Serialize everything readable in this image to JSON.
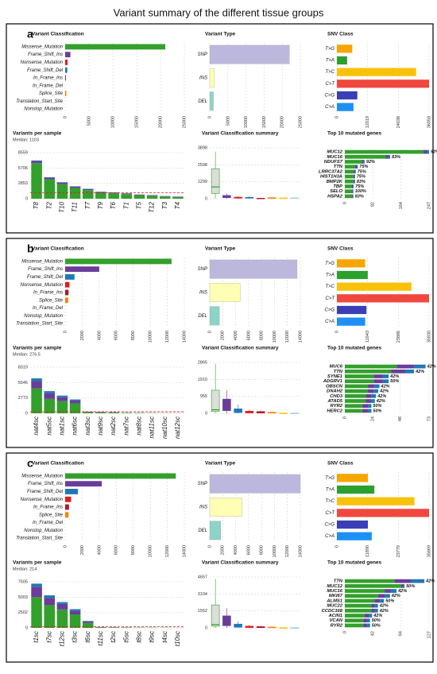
{
  "title": "Variant summary of the different tissue groups",
  "panel_labels": [
    "a",
    "b",
    "c"
  ],
  "chart_data": [
    {
      "type": "hbar",
      "title": "Variant Classification",
      "categories": [
        "Missense_Mutation",
        "Frame_Shift_Ins",
        "Nonsense_Mutation",
        "Frame_Shift_Del",
        "In_Frame_Ins",
        "In_Frame_Del",
        "Splice_Site",
        "Translation_Start_Site",
        "Nonstop_Mutation"
      ],
      "values": [
        21000,
        1100,
        500,
        450,
        150,
        0,
        250,
        0,
        0
      ],
      "colors": [
        "#33a02c",
        "#6a3d9a",
        "#e31a1c",
        "#1f78b4",
        "#b2182b",
        "#fb9a99",
        "#ff7f00",
        "#a6cee3",
        "#cab2d6"
      ],
      "xlim": [
        0,
        25000
      ],
      "xticks": [
        0,
        5000,
        10000,
        15000,
        20000,
        25000
      ],
      "grid": true
    },
    {
      "type": "hbar",
      "title": "Variant Type",
      "categories": [
        "SNP",
        "INS",
        "DEL"
      ],
      "values": [
        22000,
        1300,
        1000
      ],
      "colors": [
        "#bcb8dd",
        "#ffffb3",
        "#8dd3c7"
      ],
      "xlim": [
        0,
        25000
      ],
      "xticks": [
        0,
        5000,
        10000,
        15000,
        20000,
        25000
      ],
      "grid": true
    },
    {
      "type": "hbar",
      "title": "SNV Class",
      "categories": [
        "T>G",
        "T>A",
        "T>C",
        "C>T",
        "C>G",
        "C>A"
      ],
      "values": [
        6000,
        4000,
        31000,
        36058,
        8000,
        6500
      ],
      "colors": [
        "#f7a600",
        "#2ca02c",
        "#f9c20a",
        "#f0483e",
        "#3a3fb5",
        "#1e90f5"
      ],
      "xlim": [
        0,
        36058
      ],
      "xticks": [
        0,
        12019,
        24038,
        36058
      ],
      "grid": true
    },
    {
      "type": "stacked_bar",
      "title": "Variants per sample",
      "subtitle": "Median: 1103",
      "median": 1103,
      "categories": [
        "T8",
        "T2",
        "T10",
        "T11",
        "T7",
        "T9",
        "T6",
        "T1",
        "T5",
        "T12",
        "T3",
        "T4"
      ],
      "series": [
        {
          "name": "Missense_Mutation",
          "color": "#33a02c",
          "values": [
            6600,
            3600,
            2700,
            2000,
            1600,
            1100,
            1000,
            850,
            650,
            550,
            400,
            300
          ]
        },
        {
          "name": "Frame_Shift_Ins",
          "color": "#6a3d9a",
          "values": [
            400,
            300,
            300,
            250,
            200,
            150,
            150,
            120,
            100,
            100,
            80,
            70
          ]
        },
        {
          "name": "Frame_Shift_Del",
          "color": "#1f78b4",
          "values": [
            100,
            80,
            70,
            60,
            50,
            40,
            40,
            30,
            30,
            30,
            20,
            20
          ]
        }
      ],
      "ylim": [
        0,
        8559
      ],
      "yticks": [
        0,
        2853,
        5706,
        8559
      ],
      "grid": true
    },
    {
      "type": "box",
      "title": "Variant Classification summary",
      "box_colors": [
        "#33a02c",
        "#6a3d9a",
        "#e31a1c",
        "#1f78b4",
        "#b2182b",
        "#ff7f00",
        "#f9c20a",
        "#a6cee3"
      ],
      "boxes": [
        [
          20,
          400,
          900,
          2300,
          3600
        ],
        [
          0,
          80,
          120,
          250,
          400
        ],
        [
          0,
          40,
          70,
          120,
          200
        ],
        [
          0,
          40,
          70,
          110,
          180
        ],
        [
          0,
          10,
          20,
          40,
          70
        ],
        [
          0,
          20,
          40,
          80,
          120
        ],
        [
          0,
          10,
          30,
          60,
          90
        ],
        [
          0,
          20,
          40,
          70,
          110
        ]
      ],
      "ylim": [
        0,
        3898
      ],
      "yticks": [
        0,
        1299,
        2598,
        3898
      ],
      "grid": true
    },
    {
      "type": "stacked_hbar",
      "title": "Top 10 mutated genes",
      "categories": [
        "MUC12",
        "MUC16",
        "NDUFS7",
        "TTN",
        "LRRC37A2",
        "HIST1H3A",
        "BMP2K",
        "TBP",
        "SELO",
        "HSPA2"
      ],
      "percent_labels": [
        "92%",
        "83%",
        "92%",
        "75%",
        "75%",
        "75%",
        "83%",
        "75%",
        "100%",
        "83%"
      ],
      "series": [
        {
          "name": "Missense_Mutation",
          "color": "#33a02c",
          "values": [
            230,
            120,
            50,
            30,
            25,
            25,
            25,
            20,
            20,
            20
          ]
        },
        {
          "name": "Frame_Shift_Ins",
          "color": "#6a3d9a",
          "values": [
            10,
            8,
            5,
            5,
            5,
            3,
            3,
            4,
            3,
            3
          ]
        },
        {
          "name": "Frame_Shift_Del",
          "color": "#1f78b4",
          "values": [
            7,
            5,
            3,
            3,
            2,
            2,
            2,
            2,
            2,
            2
          ]
        }
      ],
      "xlim": [
        0,
        247
      ],
      "xticks": [
        0,
        82,
        164,
        247
      ],
      "grid": true
    },
    {
      "type": "hbar",
      "title": "Variant Classification",
      "categories": [
        "Missense_Mutation",
        "Frame_Shift_Ins",
        "Frame_Shift_Del",
        "Nonsense_Mutation",
        "In_Frame_Ins",
        "Splice_Site",
        "In_Frame_Del",
        "Nonstop_Mutation",
        "Translation_Start_Site"
      ],
      "values": [
        12500,
        4000,
        1100,
        500,
        400,
        350,
        0,
        0,
        0
      ],
      "colors": [
        "#33a02c",
        "#6a3d9a",
        "#1f78b4",
        "#e31a1c",
        "#b2182b",
        "#ff7f00",
        "#fb9a99",
        "#cab2d6",
        "#a6cee3"
      ],
      "xlim": [
        0,
        14000
      ],
      "xticks": [
        0,
        2000,
        4000,
        6000,
        8000,
        10000,
        12000,
        14000
      ],
      "grid": true
    },
    {
      "type": "hbar",
      "title": "Variant Type",
      "categories": [
        "SNP",
        "INS",
        "DEL"
      ],
      "values": [
        13500,
        4700,
        1500
      ],
      "colors": [
        "#bcb8dd",
        "#ffffb3",
        "#8dd3c7"
      ],
      "xlim": [
        0,
        14000
      ],
      "xticks": [
        0,
        2000,
        4000,
        6000,
        8000,
        10000,
        12000,
        14000
      ],
      "grid": true
    },
    {
      "type": "hbar",
      "title": "SNV Class",
      "categories": [
        "T>G",
        "T>A",
        "T>C",
        "C>T",
        "C>G",
        "C>A"
      ],
      "values": [
        11000,
        12000,
        29000,
        35830,
        11500,
        11000
      ],
      "colors": [
        "#f7a600",
        "#2ca02c",
        "#f9c20a",
        "#f0483e",
        "#3a3fb5",
        "#1e90f5"
      ],
      "xlim": [
        0,
        35830
      ],
      "xticks": [
        0,
        11943,
        23886,
        35830
      ],
      "grid": true
    },
    {
      "type": "stacked_bar",
      "title": "Variants per sample",
      "subtitle": "Median: 276.5",
      "median": 276.5,
      "categories": [
        "nat4sc",
        "nat5sc",
        "nat1sc",
        "nat6sc",
        "nat3sc",
        "nat9sc",
        "nat2sc",
        "nat7sc",
        "nat8sc",
        "nat11sc",
        "nat10sc",
        "nat12sc"
      ],
      "series": [
        {
          "name": "Missense_Mutation",
          "color": "#33a02c",
          "values": [
            4500,
            2600,
            2200,
            1800,
            200,
            180,
            150,
            70,
            60,
            40,
            20,
            15
          ]
        },
        {
          "name": "Frame_Shift_Ins",
          "color": "#6a3d9a",
          "values": [
            1300,
            1000,
            700,
            500,
            80,
            60,
            40,
            20,
            15,
            8,
            6,
            4
          ]
        },
        {
          "name": "Frame_Shift_Del",
          "color": "#1f78b4",
          "values": [
            500,
            400,
            300,
            200,
            20,
            10,
            10,
            10,
            5,
            2,
            4,
            1
          ]
        }
      ],
      "ylim": [
        0,
        8319
      ],
      "yticks": [
        0,
        2773,
        5546,
        8319
      ],
      "grid": true
    },
    {
      "type": "box",
      "title": "Variant Classification summary",
      "box_colors": [
        "#33a02c",
        "#6a3d9a",
        "#1f78b4",
        "#e31a1c",
        "#b2182b",
        "#ff7f00",
        "#f9c20a",
        "#a6cee3"
      ],
      "boxes": [
        [
          0,
          100,
          200,
          1300,
          2800
        ],
        [
          0,
          150,
          300,
          800,
          1300
        ],
        [
          0,
          40,
          120,
          250,
          500
        ],
        [
          0,
          20,
          60,
          120,
          200
        ],
        [
          0,
          15,
          50,
          100,
          150
        ],
        [
          0,
          10,
          30,
          60,
          90
        ],
        [
          0,
          0,
          5,
          10,
          20
        ],
        [
          0,
          0,
          2,
          5,
          10
        ]
      ],
      "ylim": [
        0,
        2865
      ],
      "yticks": [
        0,
        955,
        1910,
        2865
      ],
      "grid": true
    },
    {
      "type": "stacked_hbar",
      "title": "Top 10 mutated genes",
      "categories": [
        "MUC6",
        "TTN",
        "SYNE1",
        "ADGRV1",
        "OBSCN",
        "DNAH2",
        "CHD3",
        "ATAD5",
        "RYR2",
        "HERC2"
      ],
      "percent_labels": [
        "42%",
        "42%",
        "42%",
        "50%",
        "42%",
        "42%",
        "42%",
        "42%",
        "50%",
        "50%"
      ],
      "series": [
        {
          "name": "Missense_Mutation",
          "color": "#33a02c",
          "values": [
            45,
            40,
            25,
            25,
            20,
            20,
            18,
            18,
            15,
            15
          ]
        },
        {
          "name": "Frame_Shift_Ins",
          "color": "#6a3d9a",
          "values": [
            15,
            12,
            8,
            8,
            6,
            5,
            5,
            5,
            5,
            5
          ]
        },
        {
          "name": "Frame_Shift_Del",
          "color": "#1f78b4",
          "values": [
            10,
            8,
            5,
            5,
            4,
            4,
            4,
            3,
            3,
            3
          ]
        }
      ],
      "xlim": [
        0,
        73
      ],
      "xticks": [
        0,
        24,
        48,
        73
      ],
      "grid": true
    },
    {
      "type": "hbar",
      "title": "Variant Classification",
      "categories": [
        "Missense_Mutation",
        "Frame_Shift_Ins",
        "Frame_Shift_Del",
        "Nonsense_Mutation",
        "In_Frame_Ins",
        "Splice_Site",
        "In_Frame_Del",
        "Nonstop_Mutation",
        "Translation_Start_Site"
      ],
      "values": [
        13000,
        4300,
        1500,
        700,
        450,
        400,
        0,
        0,
        0
      ],
      "colors": [
        "#33a02c",
        "#6a3d9a",
        "#1f78b4",
        "#e31a1c",
        "#b2182b",
        "#ff7f00",
        "#fb9a99",
        "#cab2d6",
        "#a6cee3"
      ],
      "xlim": [
        0,
        14000
      ],
      "xticks": [
        0,
        2000,
        4000,
        6000,
        8000,
        10000,
        12000,
        14000
      ],
      "grid": true
    },
    {
      "type": "hbar",
      "title": "Variant Type",
      "categories": [
        "SNP",
        "INS",
        "DEL"
      ],
      "values": [
        14000,
        5000,
        1700
      ],
      "colors": [
        "#bcb8dd",
        "#ffffb3",
        "#8dd3c7"
      ],
      "xlim": [
        0,
        14000
      ],
      "xticks": [
        0,
        2000,
        4000,
        6000,
        8000,
        10000,
        12000,
        14000
      ],
      "grid": true
    },
    {
      "type": "hbar",
      "title": "SNV Class",
      "categories": [
        "T>G",
        "T>A",
        "T>C",
        "C>T",
        "C>G",
        "C>A"
      ],
      "values": [
        12000,
        14500,
        30000,
        35669,
        12000,
        13500
      ],
      "colors": [
        "#f7a600",
        "#2ca02c",
        "#f9c20a",
        "#f0483e",
        "#3a3fb5",
        "#1e90f5"
      ],
      "xlim": [
        0,
        35669
      ],
      "xticks": [
        0,
        11890,
        23779,
        35669
      ],
      "grid": true
    },
    {
      "type": "stacked_bar",
      "title": "Variants per sample",
      "subtitle": "Median: 214",
      "median": 214,
      "categories": [
        "t1sc",
        "t7sc",
        "t12sc",
        "t3sc",
        "t6sc",
        "t11sc",
        "t2sc",
        "t5sc",
        "t8sc",
        "t9sc",
        "t4sc",
        "t10sc"
      ],
      "series": [
        {
          "name": "Missense_Mutation",
          "color": "#33a02c",
          "values": [
            5000,
            3700,
            3000,
            2200,
            800,
            100,
            70,
            60,
            40,
            30,
            20,
            15
          ]
        },
        {
          "name": "Frame_Shift_Ins",
          "color": "#6a3d9a",
          "values": [
            1700,
            1200,
            900,
            600,
            250,
            40,
            25,
            15,
            15,
            8,
            8,
            4
          ]
        },
        {
          "name": "Frame_Shift_Del",
          "color": "#1f78b4",
          "values": [
            500,
            400,
            300,
            250,
            80,
            10,
            5,
            5,
            5,
            2,
            2,
            1
          ]
        }
      ],
      "ylim": [
        0,
        7505
      ],
      "yticks": [
        0,
        2502,
        5003,
        7505
      ],
      "grid": true
    },
    {
      "type": "box",
      "title": "Variant Classification summary",
      "box_colors": [
        "#33a02c",
        "#6a3d9a",
        "#1f78b4",
        "#e31a1c",
        "#b2182b",
        "#ff7f00",
        "#f9c20a",
        "#a6cee3"
      ],
      "boxes": [
        [
          0,
          150,
          300,
          2100,
          4500
        ],
        [
          0,
          200,
          400,
          1100,
          1800
        ],
        [
          0,
          60,
          150,
          350,
          600
        ],
        [
          0,
          30,
          80,
          160,
          280
        ],
        [
          0,
          20,
          60,
          120,
          200
        ],
        [
          0,
          15,
          40,
          80,
          120
        ],
        [
          0,
          0,
          5,
          15,
          30
        ],
        [
          0,
          0,
          3,
          8,
          15
        ]
      ],
      "ylim": [
        0,
        4657
      ],
      "yticks": [
        0,
        1552,
        3104,
        4657
      ],
      "grid": true
    },
    {
      "type": "stacked_hbar",
      "title": "Top 10 mutated genes",
      "categories": [
        "TTN",
        "MUC12",
        "MUC16",
        "MKI67",
        "ALMS1",
        "MUC22",
        "CCDC168",
        "ACIN1",
        "VCAN",
        "RYR2"
      ],
      "percent_labels": [
        "42%",
        "50%",
        "42%",
        "42%",
        "50%",
        "42%",
        "42%",
        "42%",
        "50%",
        "50%"
      ],
      "series": [
        {
          "name": "Missense_Mutation",
          "color": "#33a02c",
          "values": [
            75,
            85,
            60,
            50,
            45,
            40,
            40,
            30,
            28,
            28
          ]
        },
        {
          "name": "Frame_Shift_Ins",
          "color": "#6a3d9a",
          "values": [
            25,
            3,
            10,
            10,
            8,
            5,
            5,
            6,
            5,
            5
          ]
        },
        {
          "name": "Frame_Shift_Del",
          "color": "#1f78b4",
          "values": [
            20,
            2,
            8,
            8,
            6,
            5,
            5,
            5,
            5,
            5
          ]
        }
      ],
      "xlim": [
        0,
        127
      ],
      "xticks": [
        0,
        42,
        84,
        127
      ],
      "grid": true
    }
  ]
}
